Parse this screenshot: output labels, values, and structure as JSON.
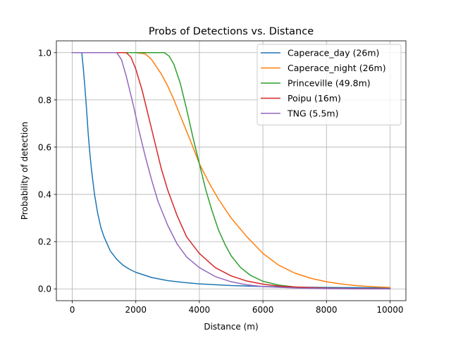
{
  "chart_data": {
    "type": "line",
    "title": "Probs of Detections vs. Distance",
    "xlabel": "Distance (m)",
    "ylabel": "Probability of detection",
    "xlim": [
      -500,
      10500
    ],
    "ylim": [
      -0.05,
      1.05
    ],
    "xticks": [
      0,
      2000,
      4000,
      6000,
      8000,
      10000
    ],
    "xtick_labels": [
      "0",
      "2000",
      "4000",
      "6000",
      "8000",
      "10000"
    ],
    "yticks": [
      0.0,
      0.2,
      0.4,
      0.6,
      0.8,
      1.0
    ],
    "ytick_labels": [
      "0.0",
      "0.2",
      "0.4",
      "0.6",
      "0.8",
      "1.0"
    ],
    "grid": true,
    "legend_position": "top-right",
    "series": [
      {
        "name": "Caperace_day (26m)",
        "color": "#1f77b4",
        "points": [
          [
            0,
            1.0
          ],
          [
            300,
            1.0
          ],
          [
            350,
            0.93
          ],
          [
            400,
            0.85
          ],
          [
            450,
            0.76
          ],
          [
            500,
            0.66
          ],
          [
            550,
            0.58
          ],
          [
            600,
            0.51
          ],
          [
            700,
            0.4
          ],
          [
            800,
            0.32
          ],
          [
            900,
            0.26
          ],
          [
            1000,
            0.22
          ],
          [
            1200,
            0.16
          ],
          [
            1400,
            0.125
          ],
          [
            1600,
            0.1
          ],
          [
            1800,
            0.083
          ],
          [
            2000,
            0.07
          ],
          [
            2500,
            0.048
          ],
          [
            3000,
            0.035
          ],
          [
            3500,
            0.027
          ],
          [
            4000,
            0.021
          ],
          [
            5000,
            0.014
          ],
          [
            6000,
            0.01
          ],
          [
            7000,
            0.0075
          ],
          [
            8000,
            0.006
          ],
          [
            9000,
            0.005
          ],
          [
            10000,
            0.004
          ]
        ]
      },
      {
        "name": "Caperace_night (26m)",
        "color": "#ff7f0e",
        "points": [
          [
            0,
            1.0
          ],
          [
            2000,
            1.0
          ],
          [
            2300,
            0.995
          ],
          [
            2500,
            0.97
          ],
          [
            2800,
            0.91
          ],
          [
            3000,
            0.86
          ],
          [
            3200,
            0.8
          ],
          [
            3500,
            0.7
          ],
          [
            3800,
            0.6
          ],
          [
            4000,
            0.53
          ],
          [
            4300,
            0.45
          ],
          [
            4600,
            0.38
          ],
          [
            5000,
            0.3
          ],
          [
            5500,
            0.22
          ],
          [
            6000,
            0.15
          ],
          [
            6500,
            0.1
          ],
          [
            7000,
            0.067
          ],
          [
            7500,
            0.045
          ],
          [
            8000,
            0.03
          ],
          [
            8500,
            0.02
          ],
          [
            9000,
            0.013
          ],
          [
            9500,
            0.009
          ],
          [
            10000,
            0.006
          ]
        ]
      },
      {
        "name": "Princeville (49.8m)",
        "color": "#2ca02c",
        "points": [
          [
            0,
            1.0
          ],
          [
            2900,
            1.0
          ],
          [
            3050,
            0.985
          ],
          [
            3200,
            0.95
          ],
          [
            3400,
            0.87
          ],
          [
            3600,
            0.76
          ],
          [
            3800,
            0.64
          ],
          [
            4000,
            0.53
          ],
          [
            4200,
            0.42
          ],
          [
            4400,
            0.33
          ],
          [
            4600,
            0.25
          ],
          [
            4800,
            0.19
          ],
          [
            5000,
            0.14
          ],
          [
            5300,
            0.09
          ],
          [
            5600,
            0.058
          ],
          [
            6000,
            0.032
          ],
          [
            6500,
            0.016
          ],
          [
            7000,
            0.008
          ],
          [
            7500,
            0.004
          ],
          [
            8000,
            0.002
          ],
          [
            9000,
            0.0005
          ],
          [
            10000,
            0.0001
          ]
        ]
      },
      {
        "name": "Poipu (16m)",
        "color": "#d62728",
        "points": [
          [
            0,
            1.0
          ],
          [
            1700,
            1.0
          ],
          [
            1850,
            0.98
          ],
          [
            2000,
            0.93
          ],
          [
            2200,
            0.84
          ],
          [
            2400,
            0.73
          ],
          [
            2600,
            0.62
          ],
          [
            2800,
            0.51
          ],
          [
            3000,
            0.42
          ],
          [
            3300,
            0.31
          ],
          [
            3600,
            0.22
          ],
          [
            4000,
            0.15
          ],
          [
            4500,
            0.09
          ],
          [
            5000,
            0.055
          ],
          [
            5500,
            0.033
          ],
          [
            6000,
            0.02
          ],
          [
            6500,
            0.012
          ],
          [
            7000,
            0.008
          ],
          [
            8000,
            0.003
          ],
          [
            9000,
            0.001
          ],
          [
            10000,
            0.0005
          ]
        ]
      },
      {
        "name": "TNG (5.5m)",
        "color": "#9467bd",
        "points": [
          [
            0,
            1.0
          ],
          [
            1400,
            1.0
          ],
          [
            1550,
            0.97
          ],
          [
            1700,
            0.9
          ],
          [
            1900,
            0.79
          ],
          [
            2100,
            0.67
          ],
          [
            2300,
            0.56
          ],
          [
            2500,
            0.46
          ],
          [
            2700,
            0.37
          ],
          [
            3000,
            0.27
          ],
          [
            3300,
            0.19
          ],
          [
            3600,
            0.135
          ],
          [
            4000,
            0.09
          ],
          [
            4500,
            0.052
          ],
          [
            5000,
            0.03
          ],
          [
            5500,
            0.017
          ],
          [
            6000,
            0.01
          ],
          [
            7000,
            0.0035
          ],
          [
            8000,
            0.0012
          ],
          [
            9000,
            0.0004
          ],
          [
            10000,
            0.0001
          ]
        ]
      }
    ]
  }
}
